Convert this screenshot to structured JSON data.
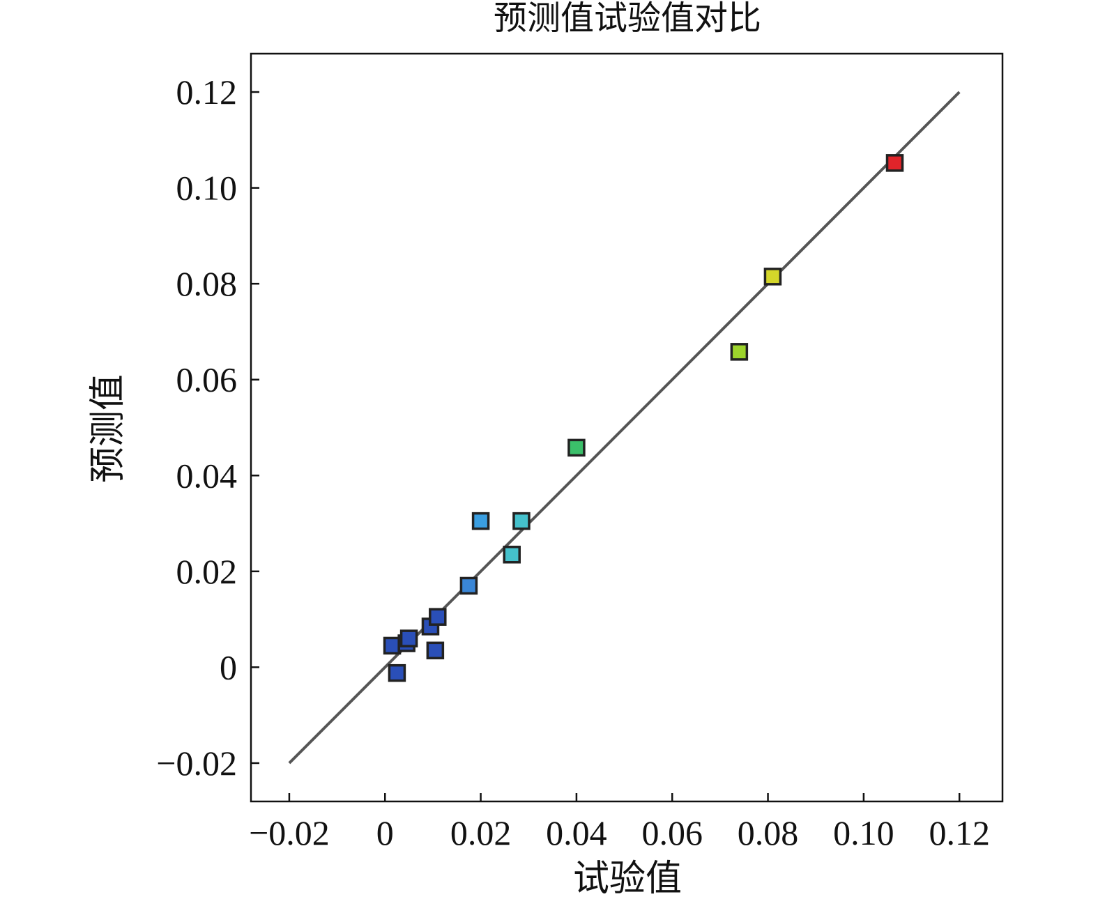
{
  "chart_data": {
    "type": "scatter",
    "title": "预测值试验值对比",
    "xlabel": "试验值",
    "ylabel": "预测值",
    "xlim": [
      -0.028,
      0.129
    ],
    "ylim": [
      -0.028,
      0.128
    ],
    "xticks": [
      -0.02,
      0,
      0.02,
      0.04,
      0.06,
      0.08,
      0.1,
      0.12
    ],
    "xtick_labels": [
      "−0.02",
      "0",
      "0.02",
      "0.04",
      "0.06",
      "0.08",
      "0.10",
      "0.12"
    ],
    "yticks": [
      -0.02,
      0,
      0.02,
      0.04,
      0.06,
      0.08,
      0.1,
      0.12
    ],
    "ytick_labels": [
      "−0.02",
      "0",
      "0.02",
      "0.04",
      "0.06",
      "0.08",
      "0.10",
      "0.12"
    ],
    "reference_line": {
      "from": [
        -0.02,
        -0.02
      ],
      "to": [
        0.12,
        0.12
      ],
      "color": "#555555"
    },
    "grid": false,
    "marker": "square",
    "points": [
      {
        "x": 0.0015,
        "y": 0.0045,
        "color": "#2a4fb8"
      },
      {
        "x": 0.0045,
        "y": 0.005,
        "color": "#2a4fb8"
      },
      {
        "x": 0.005,
        "y": 0.006,
        "color": "#2a4fb8"
      },
      {
        "x": 0.0025,
        "y": -0.0012,
        "color": "#2a4fb8"
      },
      {
        "x": 0.0095,
        "y": 0.0085,
        "color": "#2a4fb8"
      },
      {
        "x": 0.011,
        "y": 0.0105,
        "color": "#2a4fb8"
      },
      {
        "x": 0.0105,
        "y": 0.0035,
        "color": "#2a4fb8"
      },
      {
        "x": 0.0175,
        "y": 0.017,
        "color": "#3a86d6"
      },
      {
        "x": 0.02,
        "y": 0.0305,
        "color": "#3a9ee0"
      },
      {
        "x": 0.0265,
        "y": 0.0235,
        "color": "#45c1cc"
      },
      {
        "x": 0.0285,
        "y": 0.0305,
        "color": "#45c1cc"
      },
      {
        "x": 0.04,
        "y": 0.0458,
        "color": "#3bbf6a"
      },
      {
        "x": 0.074,
        "y": 0.0658,
        "color": "#9dd42c"
      },
      {
        "x": 0.081,
        "y": 0.0815,
        "color": "#d4d62a"
      },
      {
        "x": 0.1065,
        "y": 0.1052,
        "color": "#e0242a"
      }
    ]
  }
}
